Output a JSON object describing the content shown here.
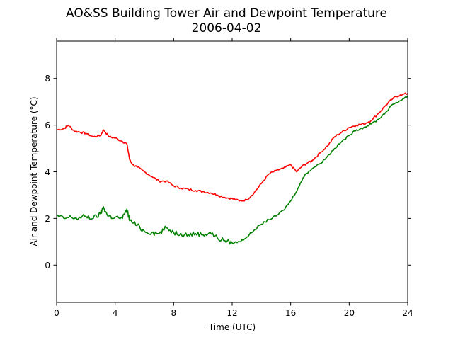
{
  "chart_data": {
    "type": "line",
    "title": "AO&SS Building Tower Air and Dewpoint Temperature",
    "subtitle": "2006-04-02",
    "xlabel": "Time (UTC)",
    "ylabel": "Air and Dewpoint Temperature (°C)",
    "xlim": [
      0,
      24
    ],
    "ylim": [
      -1.6,
      9.6
    ],
    "xticks": [
      0,
      4,
      8,
      12,
      16,
      20,
      24
    ],
    "yticks": [
      0,
      2,
      4,
      6,
      8
    ],
    "grid": false,
    "series": [
      {
        "color": "#ff0000",
        "x": [
          0,
          0.5,
          0.8,
          1.2,
          1.6,
          2.0,
          2.5,
          3.0,
          3.2,
          3.6,
          4.0,
          4.5,
          4.8,
          5.0,
          5.2,
          5.5,
          6.0,
          6.5,
          7.0,
          7.5,
          8.0,
          8.5,
          9.0,
          9.5,
          10.0,
          10.5,
          11.0,
          11.5,
          12.0,
          12.5,
          13.0,
          13.5,
          14.0,
          14.5,
          15.0,
          15.5,
          16.0,
          16.4,
          16.8,
          17.2,
          17.5,
          18.0,
          18.5,
          19.0,
          19.5,
          20.0,
          20.5,
          21.0,
          21.5,
          22.0,
          22.5,
          23.0,
          23.5,
          24.0
        ],
        "y": [
          5.8,
          5.85,
          6.0,
          5.75,
          5.7,
          5.65,
          5.5,
          5.55,
          5.8,
          5.5,
          5.45,
          5.3,
          5.2,
          4.5,
          4.3,
          4.2,
          4.0,
          3.8,
          3.6,
          3.6,
          3.4,
          3.3,
          3.25,
          3.2,
          3.15,
          3.1,
          3.0,
          2.9,
          2.85,
          2.75,
          2.8,
          3.1,
          3.5,
          3.9,
          4.05,
          4.15,
          4.3,
          4.0,
          4.25,
          4.4,
          4.5,
          4.8,
          5.1,
          5.5,
          5.7,
          5.9,
          6.0,
          6.05,
          6.2,
          6.5,
          6.85,
          7.15,
          7.3,
          7.35
        ]
      },
      {
        "color": "#008000",
        "x": [
          0,
          0.5,
          1.0,
          1.5,
          2.0,
          2.5,
          3.0,
          3.2,
          3.5,
          4.0,
          4.5,
          4.8,
          5.0,
          5.5,
          6.0,
          6.5,
          7.0,
          7.5,
          8.0,
          8.5,
          9.0,
          9.5,
          10.0,
          10.5,
          11.0,
          11.5,
          12.0,
          12.5,
          13.0,
          13.5,
          14.0,
          14.5,
          15.0,
          15.5,
          16.0,
          16.5,
          17.0,
          17.5,
          18.0,
          18.5,
          19.0,
          19.5,
          20.0,
          20.5,
          21.0,
          21.5,
          22.0,
          22.5,
          23.0,
          23.5,
          24.0
        ],
        "y": [
          2.1,
          2.0,
          2.05,
          2.0,
          2.1,
          2.0,
          2.2,
          2.5,
          2.1,
          2.05,
          2.0,
          2.4,
          1.9,
          1.7,
          1.45,
          1.4,
          1.35,
          1.6,
          1.4,
          1.35,
          1.3,
          1.35,
          1.3,
          1.4,
          1.15,
          1.05,
          0.95,
          1.0,
          1.2,
          1.5,
          1.75,
          1.95,
          2.1,
          2.35,
          2.75,
          3.3,
          3.9,
          4.15,
          4.35,
          4.65,
          5.0,
          5.3,
          5.55,
          5.8,
          5.9,
          6.05,
          6.25,
          6.55,
          6.9,
          7.05,
          7.25
        ]
      }
    ]
  }
}
